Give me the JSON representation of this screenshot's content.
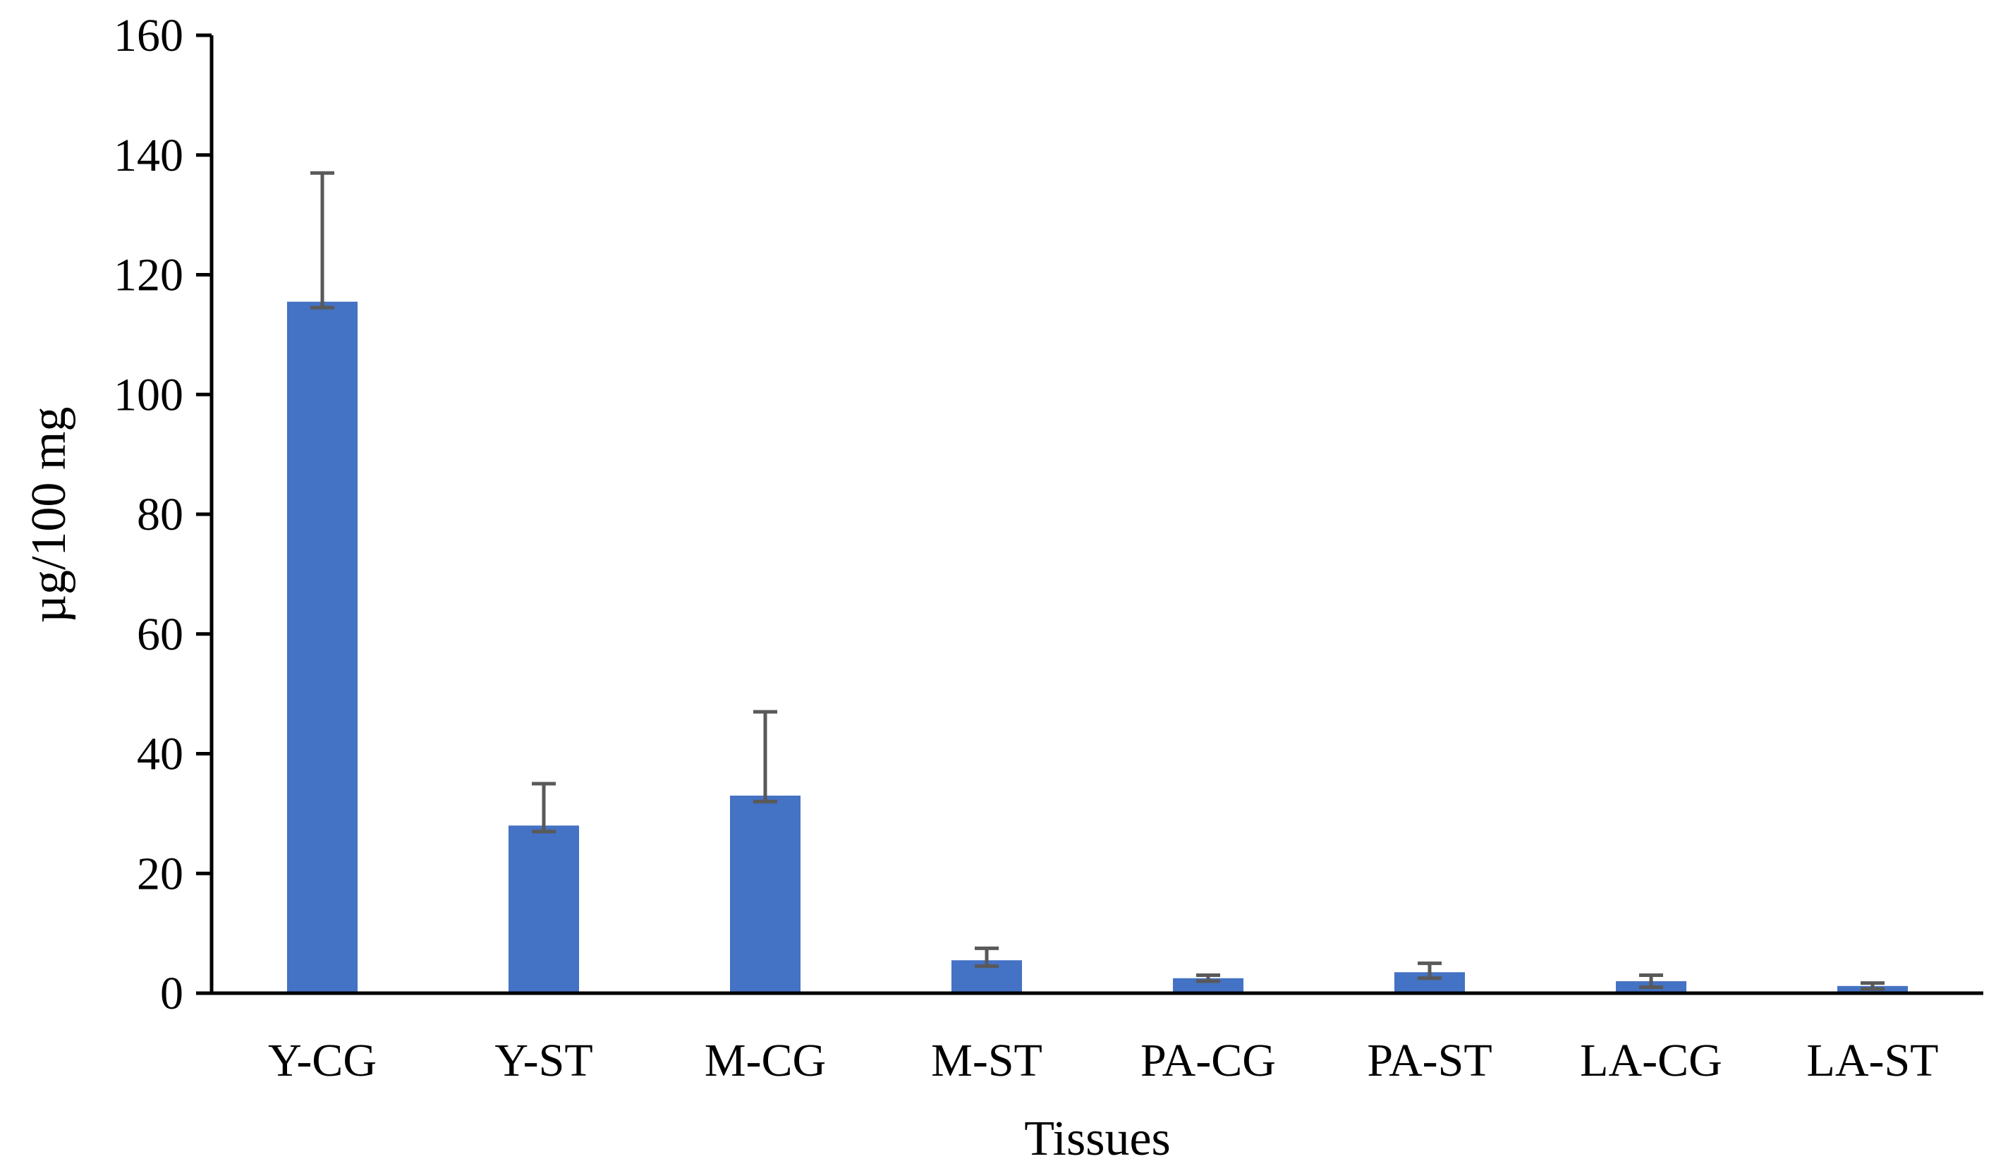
{
  "chart_data": {
    "type": "bar",
    "title": "",
    "xlabel": "Tissues",
    "ylabel": "µg/100 mg",
    "ylim": [
      0,
      160
    ],
    "yticks": [
      0,
      20,
      40,
      60,
      80,
      100,
      120,
      140,
      160
    ],
    "grid": false,
    "legend": "none",
    "categories": [
      "Y-CG",
      "Y-ST",
      "M-CG",
      "M-ST",
      "PA-CG",
      "PA-ST",
      "LA-CG",
      "LA-ST"
    ],
    "series": [
      {
        "values": [
          115.5,
          28,
          33,
          5.5,
          2.5,
          3.5,
          2,
          1.2
        ],
        "error_upper": [
          21.5,
          7,
          14,
          2,
          0.5,
          1.5,
          1,
          0.5
        ],
        "error_lower": [
          1,
          1,
          1,
          1,
          0.5,
          1,
          1,
          0.5
        ],
        "color": "#4472C4"
      }
    ],
    "error_bar_color": "#595959",
    "axis_color": "#000000"
  }
}
